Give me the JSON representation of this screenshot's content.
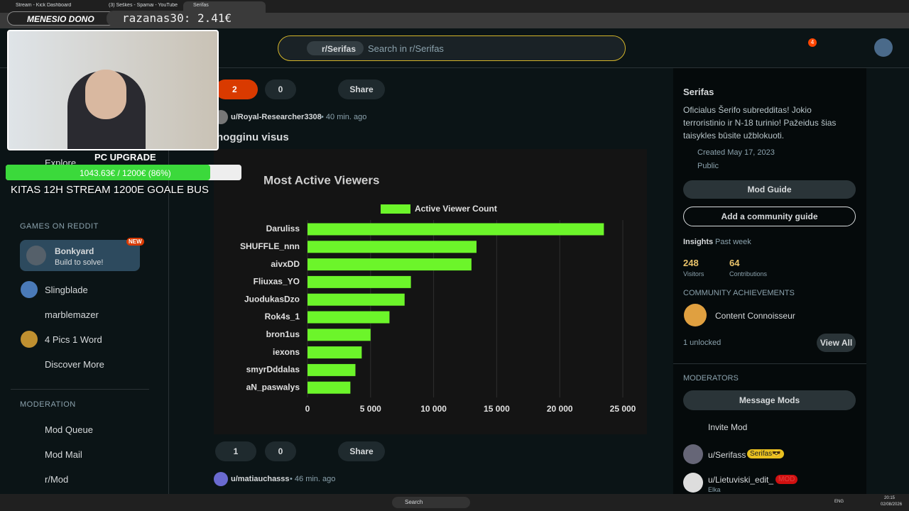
{
  "browser": {
    "tabs": [
      "Stream - Kick Dashboard",
      "(3) Šeškės - Spamai - YouTube",
      "Serifas"
    ]
  },
  "overlay": {
    "dono_title": "MENESIO DONO",
    "dono_value": "razanas30: 2.41€",
    "goal_title": "PC UPGRADE",
    "goal_progress": "1043.63€ / 1200€ (86%)",
    "goal_note": "KITAS 12H STREAM 1200E GOALE BUS"
  },
  "header": {
    "search_chip": "r/Serifas",
    "search_placeholder": "Search in r/Serifas",
    "notification_count": 4
  },
  "sidebar": {
    "explore": "Explore",
    "games_heading": "GAMES ON REDDIT",
    "featured_game": {
      "name": "Bonkyard",
      "subtitle": "Build to solve!",
      "badge": "NEW"
    },
    "games": [
      "Slingblade",
      "marblemazer",
      "4 Pics 1 Word",
      "Discover More"
    ],
    "moderation_heading": "MODERATION",
    "moderation": [
      "Mod Queue",
      "Mod Mail",
      "r/Mod"
    ]
  },
  "posts": [
    {
      "votes": 2,
      "comments": 0,
      "share": "Share"
    },
    {
      "author": "u/Royal-Researcher3308",
      "time": "• 40 min. ago",
      "title": "hogginu visus",
      "votes": 1,
      "comments": 0,
      "share": "Share"
    },
    {
      "author": "u/matiauchasss",
      "time": "• 46 min. ago"
    }
  ],
  "chart_data": {
    "type": "bar",
    "orientation": "horizontal",
    "title": "Most Active Viewers",
    "categories": [
      "Daruliss",
      "SHUFFLE_nnn",
      "aivxDD",
      "Fliuxas_YO",
      "JuodukasDzo",
      "Rok4s_1",
      "bron1us",
      "iexons",
      "smyrDddalas",
      "aN_paswalys"
    ],
    "series": [
      {
        "name": "Active Viewer Count",
        "color": "#6cf52a",
        "values": [
          23500,
          13400,
          13000,
          8200,
          7700,
          6500,
          5000,
          4300,
          3800,
          3400
        ]
      }
    ],
    "xlim": [
      0,
      25000
    ],
    "xticks": [
      0,
      {
        "value": 5000,
        "label": "5 000"
      },
      {
        "value": 10000,
        "label": "10 000"
      },
      {
        "value": 15000,
        "label": "15 000"
      },
      {
        "value": 20000,
        "label": "20 000"
      },
      {
        "value": 25000,
        "label": "25 000"
      }
    ],
    "grid": true,
    "legend": "top"
  },
  "community": {
    "name": "Serifas",
    "description": "Oficialus Šerifo subredditas! Jokio terroristinio ir N-18 turinio! Pažeidus šias taisykles būsite užblokuoti.",
    "created": "Created May 17, 2023",
    "visibility": "Public",
    "mod_guide": "Mod Guide",
    "add_guide": "Add a community guide",
    "insights": "Insights",
    "period": "Past week",
    "visitors": 248,
    "visitors_label": "Visitors",
    "contributions": 64,
    "contributions_label": "Contributions",
    "achievements_heading": "COMMUNITY ACHIEVEMENTS",
    "achievement": "Content Connoisseur",
    "unlocked": "1 unlocked",
    "view_all": "View All",
    "moderators_heading": "MODERATORS",
    "message_mods": "Message Mods",
    "invite_mod": "Invite Mod",
    "moderators": [
      {
        "name": "u/Serifass",
        "flair": "Serifas😎"
      },
      {
        "name": "u/Lietuviski_edit_",
        "flair": "MOD",
        "subtitle": "Elka"
      }
    ]
  },
  "taskbar": {
    "search": "Search",
    "language": "ENG",
    "time": "20:15",
    "date": "02/08/2026"
  }
}
